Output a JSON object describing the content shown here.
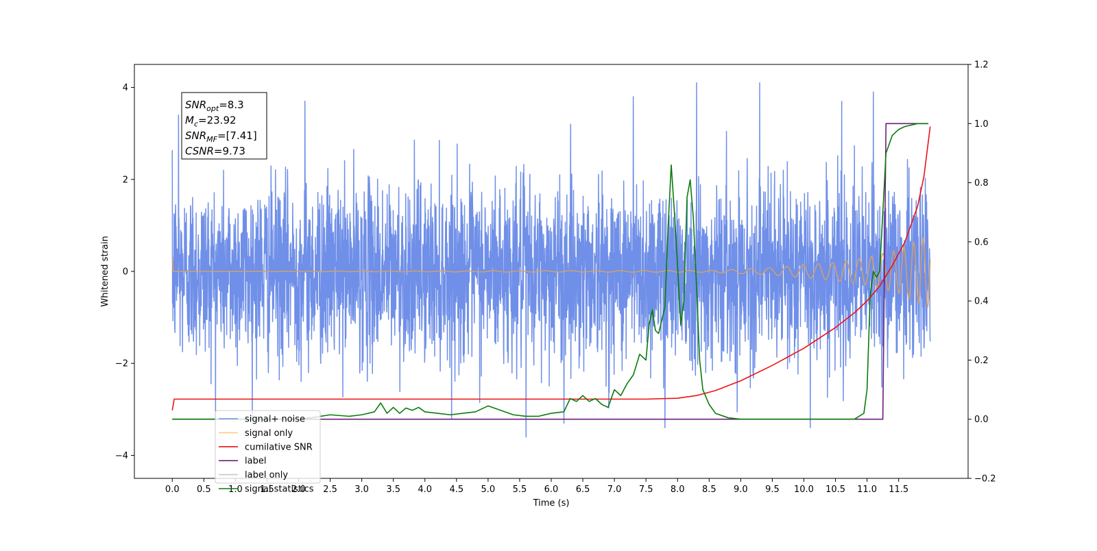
{
  "chart_data": {
    "type": "line",
    "title": "",
    "xlabel": "Time (s)",
    "ylabel_left": "Whitened strain",
    "ylabel_right": "",
    "xlim": [
      -0.6,
      12.6
    ],
    "ylim_left": [
      -4.5,
      4.5
    ],
    "ylim_right": [
      -0.2,
      1.2
    ],
    "x_ticks": [
      0.0,
      0.5,
      1.0,
      1.5,
      2.0,
      2.5,
      3.0,
      3.5,
      4.0,
      4.5,
      5.0,
      5.5,
      6.0,
      6.5,
      7.0,
      7.5,
      8.0,
      8.5,
      9.0,
      9.5,
      10.0,
      10.5,
      11.0,
      11.5
    ],
    "x_tick_labels": [
      "0.0",
      "0.5",
      "1.0",
      "1.5",
      "2.0",
      "2.5",
      "3.0",
      "3.5",
      "4.0",
      "4.5",
      "5.0",
      "5.5",
      "6.0",
      "6.5",
      "7.0",
      "7.5",
      "8.0",
      "8.5",
      "9.0",
      "9.5",
      "10.0",
      "10.5",
      "11.0",
      "11.5"
    ],
    "y_left_ticks": [
      -4,
      -2,
      0,
      2,
      4
    ],
    "y_left_tick_labels": [
      "−4",
      "−2",
      "0",
      "2",
      "4"
    ],
    "y_right_ticks": [
      -0.2,
      0.0,
      0.2,
      0.4,
      0.6,
      0.8,
      1.0,
      1.2
    ],
    "y_right_tick_labels": [
      "−0.2",
      "0.0",
      "0.2",
      "0.4",
      "0.6",
      "0.8",
      "1.0",
      "1.2"
    ],
    "grid": false,
    "legend_position": "lower-left",
    "series": [
      {
        "name": "signal+ noise",
        "axis": "left",
        "color": "#6f8fe8",
        "description": "whitened strain noise, roughly Gaussian, spanning about -3.4 to 4.1 over 0.0 to 12.0 s",
        "x_range": [
          0.0,
          12.0
        ],
        "peaks": [
          [
            0.1,
            3.4
          ],
          [
            2.1,
            3.7
          ],
          [
            7.3,
            3.8
          ],
          [
            8.3,
            4.1
          ],
          [
            9.3,
            4.1
          ],
          [
            10.6,
            3.7
          ],
          [
            11.1,
            3.9
          ]
        ],
        "troughs": [
          [
            5.6,
            -3.6
          ],
          [
            6.2,
            -3.3
          ],
          [
            7.8,
            -3.4
          ],
          [
            10.1,
            -3.4
          ]
        ]
      },
      {
        "name": "signal only",
        "axis": "left",
        "color": "#d4a06a",
        "legend_color": "#ffcc80",
        "description": "chirp waveform, amplitude near 0 until about 8.5 s, growing to about 0.8 at 12.0 s",
        "envelope": [
          [
            0.0,
            0.0
          ],
          [
            8.5,
            0.02
          ],
          [
            9.5,
            0.08
          ],
          [
            10.5,
            0.2
          ],
          [
            11.0,
            0.3
          ],
          [
            11.5,
            0.48
          ],
          [
            12.0,
            0.8
          ]
        ]
      },
      {
        "name": "cumilative SNR",
        "axis": "right",
        "color": "#ee1111",
        "x": [
          0.0,
          0.03,
          0.1,
          3.0,
          6.0,
          7.5,
          8.0,
          8.3,
          8.6,
          9.0,
          9.5,
          10.0,
          10.5,
          10.8,
          11.0,
          11.2,
          11.4,
          11.6,
          11.8,
          11.9,
          12.0
        ],
        "y": [
          0.03,
          0.068,
          0.068,
          0.068,
          0.068,
          0.068,
          0.071,
          0.08,
          0.097,
          0.13,
          0.182,
          0.24,
          0.31,
          0.36,
          0.4,
          0.45,
          0.52,
          0.6,
          0.72,
          0.82,
          0.99
        ]
      },
      {
        "name": "label",
        "axis": "right",
        "color": "#6b1d7a",
        "x": [
          0.0,
          11.25,
          11.3,
          11.97
        ],
        "y": [
          0.0,
          0.0,
          1.0,
          1.0
        ]
      },
      {
        "name": "label only",
        "axis": "right",
        "color": "#c8c8c8",
        "x": [],
        "y": []
      },
      {
        "name": "signal statistics",
        "axis": "right",
        "color": "#0a7a0a",
        "x": [
          0.0,
          0.5,
          1.0,
          1.5,
          2.0,
          2.2,
          2.5,
          2.8,
          3.0,
          3.2,
          3.3,
          3.4,
          3.5,
          3.6,
          3.7,
          3.8,
          3.9,
          4.0,
          4.2,
          4.4,
          4.6,
          4.8,
          5.0,
          5.2,
          5.4,
          5.6,
          5.8,
          6.0,
          6.2,
          6.3,
          6.4,
          6.5,
          6.6,
          6.7,
          6.8,
          6.9,
          7.0,
          7.1,
          7.2,
          7.3,
          7.4,
          7.5,
          7.55,
          7.6,
          7.65,
          7.7,
          7.8,
          7.85,
          7.9,
          7.95,
          8.0,
          8.05,
          8.1,
          8.15,
          8.2,
          8.25,
          8.3,
          8.35,
          8.4,
          8.5,
          8.6,
          8.8,
          9.0,
          9.5,
          10.0,
          10.5,
          10.8,
          10.95,
          11.0,
          11.05,
          11.1,
          11.15,
          11.2,
          11.3,
          11.4,
          11.5,
          11.6,
          11.8,
          11.97
        ],
        "y": [
          0.0,
          0.0,
          0.0,
          0.0,
          0.0,
          0.005,
          0.015,
          0.01,
          0.015,
          0.025,
          0.055,
          0.02,
          0.04,
          0.02,
          0.038,
          0.03,
          0.04,
          0.025,
          0.02,
          0.015,
          0.02,
          0.025,
          0.045,
          0.03,
          0.015,
          0.01,
          0.01,
          0.02,
          0.025,
          0.07,
          0.06,
          0.08,
          0.06,
          0.07,
          0.05,
          0.04,
          0.1,
          0.08,
          0.12,
          0.15,
          0.22,
          0.2,
          0.32,
          0.37,
          0.3,
          0.29,
          0.38,
          0.65,
          0.86,
          0.7,
          0.52,
          0.32,
          0.4,
          0.75,
          0.81,
          0.68,
          0.45,
          0.2,
          0.1,
          0.05,
          0.02,
          0.005,
          0.0,
          0.0,
          0.0,
          0.0,
          0.0,
          0.02,
          0.1,
          0.42,
          0.5,
          0.48,
          0.5,
          0.9,
          0.96,
          0.98,
          0.99,
          1.0,
          1.0
        ]
      }
    ],
    "annotations": [
      {
        "box_lines": [
          {
            "main": "SNR",
            "sub": "opt",
            "rest": "=8.3"
          },
          {
            "main": "M",
            "sub": "c",
            "rest": "=23.92"
          },
          {
            "main": "SNR",
            "sub": "MF",
            "rest": "=[7.41]"
          },
          {
            "main": "CSNR",
            "sub": "",
            "rest": "=9.73"
          }
        ]
      }
    ]
  }
}
